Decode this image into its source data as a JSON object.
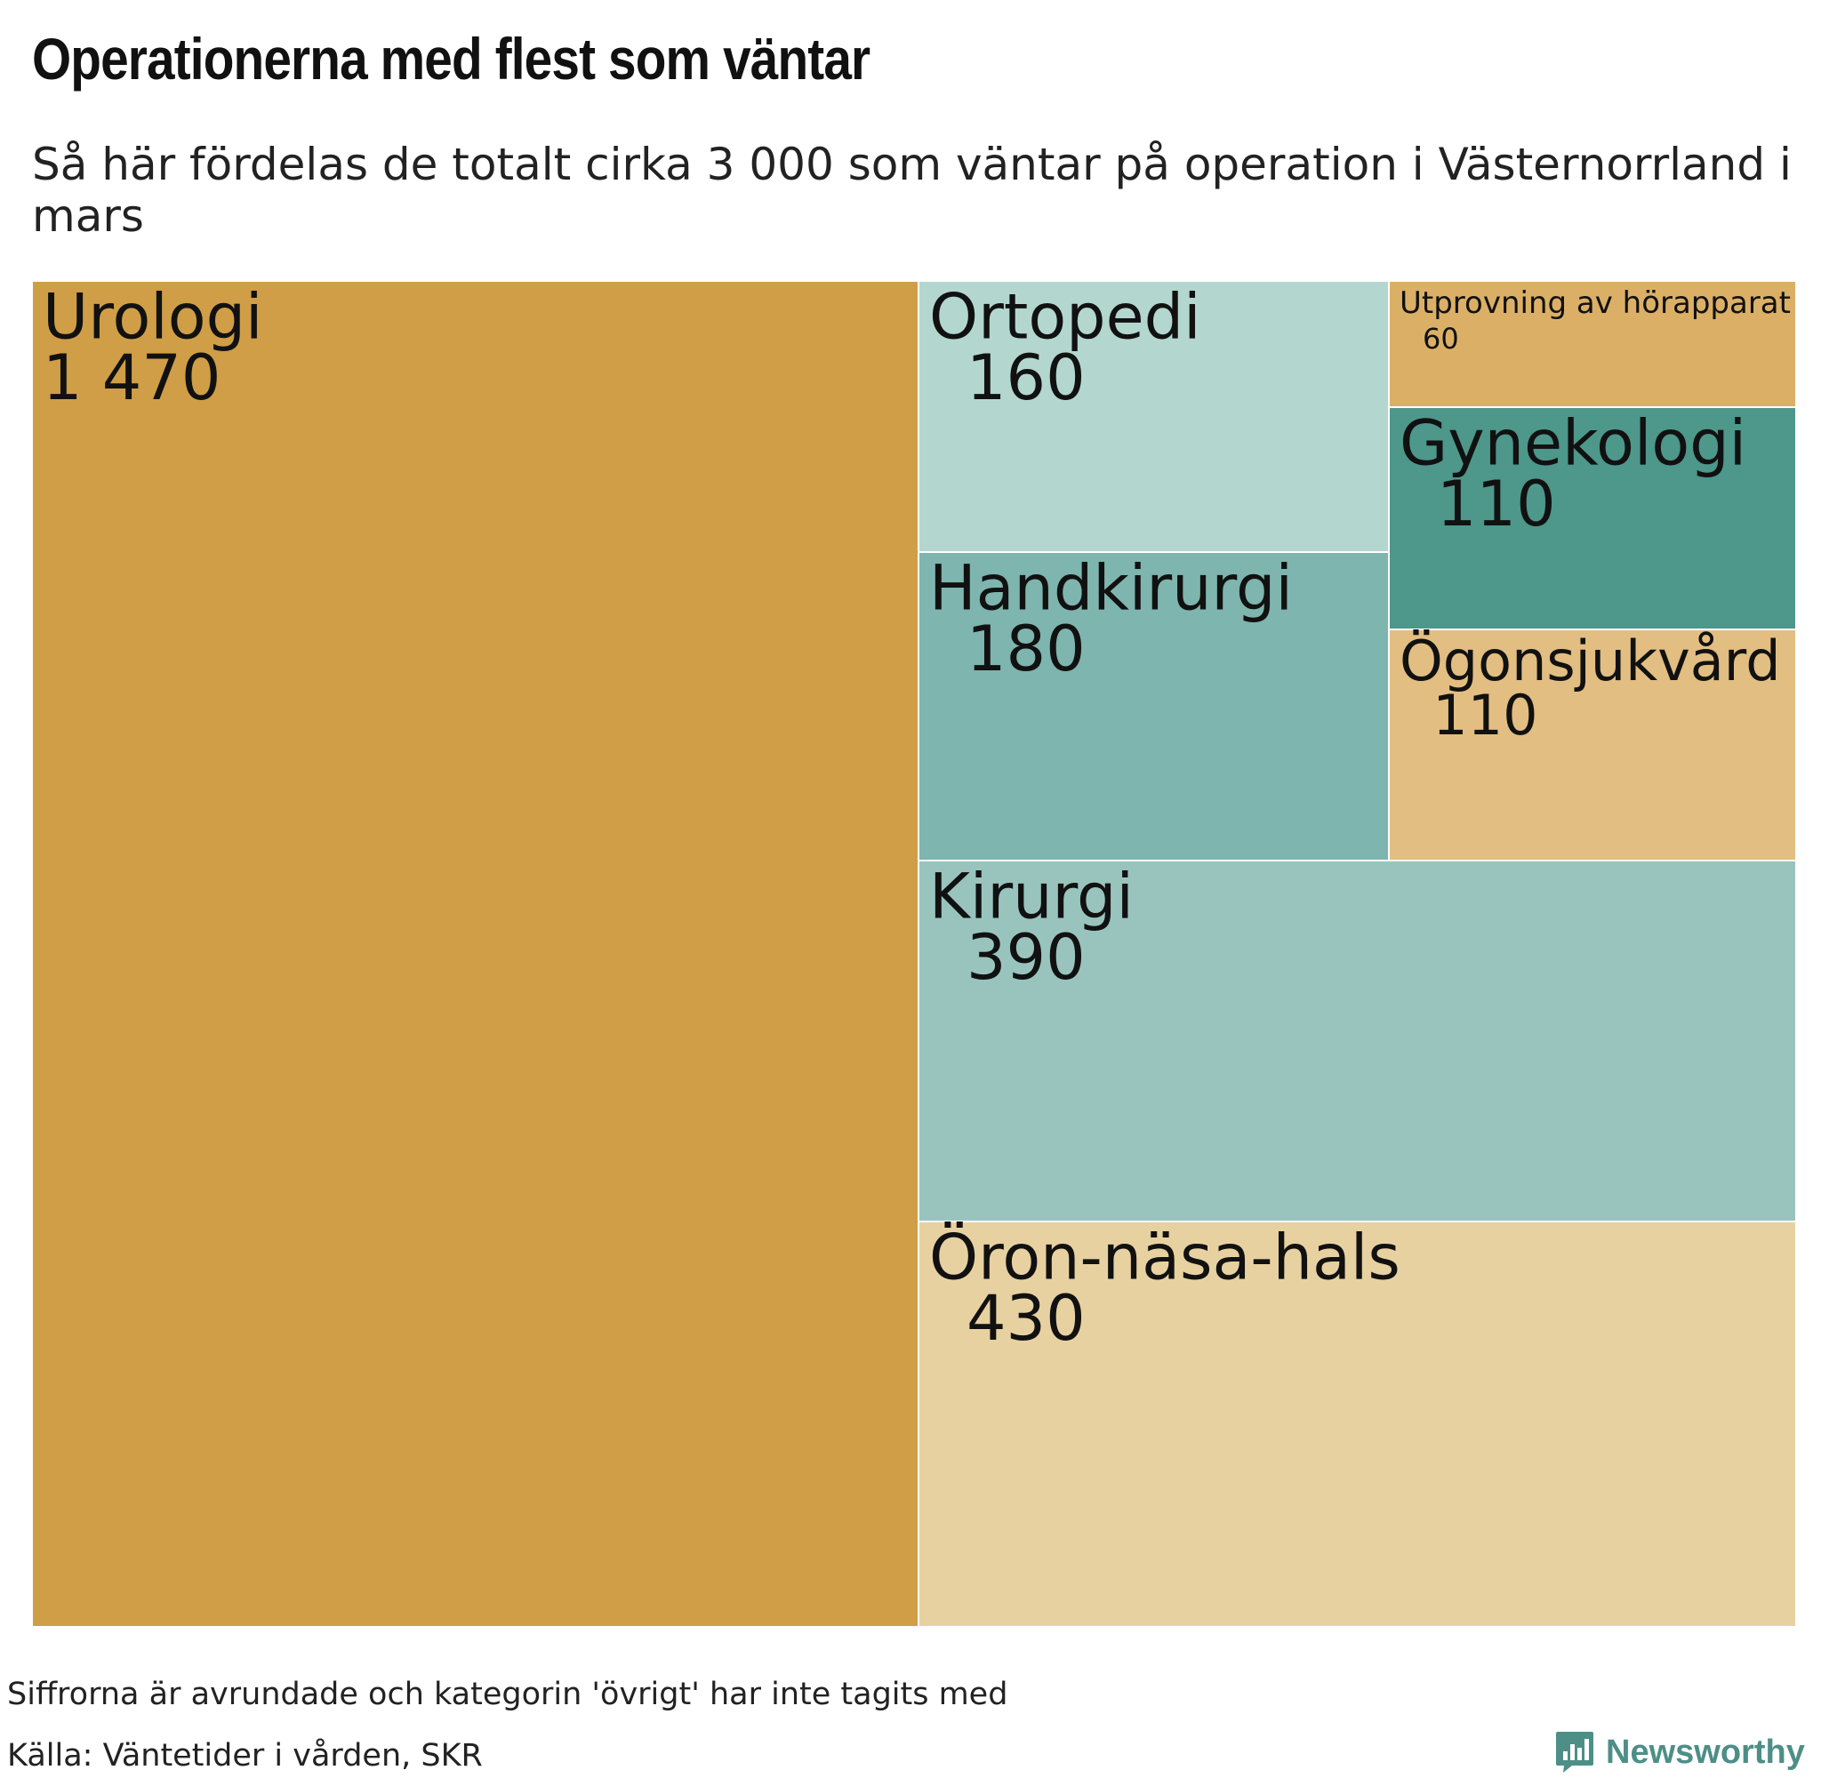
{
  "chart_data": {
    "type": "treemap",
    "title": "Operationerna med flest som väntar",
    "subtitle": "Så här fördelas de totalt cirka 3 000 som väntar på operation i Västernorrland i mars",
    "items": [
      {
        "name": "Urologi",
        "label": "1 470",
        "value": 1470,
        "color": "#d09e46"
      },
      {
        "name": "Ortopedi",
        "label": "160",
        "value": 160,
        "color": "#b3d7cf"
      },
      {
        "name": "Handkirurgi",
        "label": "180",
        "value": 180,
        "color": "#7eb5ae"
      },
      {
        "name": "Utprovning av hörapparat",
        "label": "60",
        "value": 60,
        "color": "#dbb066"
      },
      {
        "name": "Gynekologi",
        "label": "110",
        "value": 110,
        "color": "#4d978b"
      },
      {
        "name": "Ögonsjukvård",
        "label": "110",
        "value": 110,
        "color": "#e2be82"
      },
      {
        "name": "Kirurgi",
        "label": "390",
        "value": 390,
        "color": "#99c4be"
      },
      {
        "name": "Öron-näsa-hals",
        "label": "430",
        "value": 430,
        "color": "#e8d1a1"
      }
    ],
    "note": "Siffrorna är avrundade och kategorin 'övrigt' har inte tagits med",
    "source": "Källa: Väntetider i vården, SKR"
  },
  "brand": {
    "name": "Newsworthy",
    "accent": "#4d8f87",
    "icon": "newsworthy-logo-icon"
  }
}
